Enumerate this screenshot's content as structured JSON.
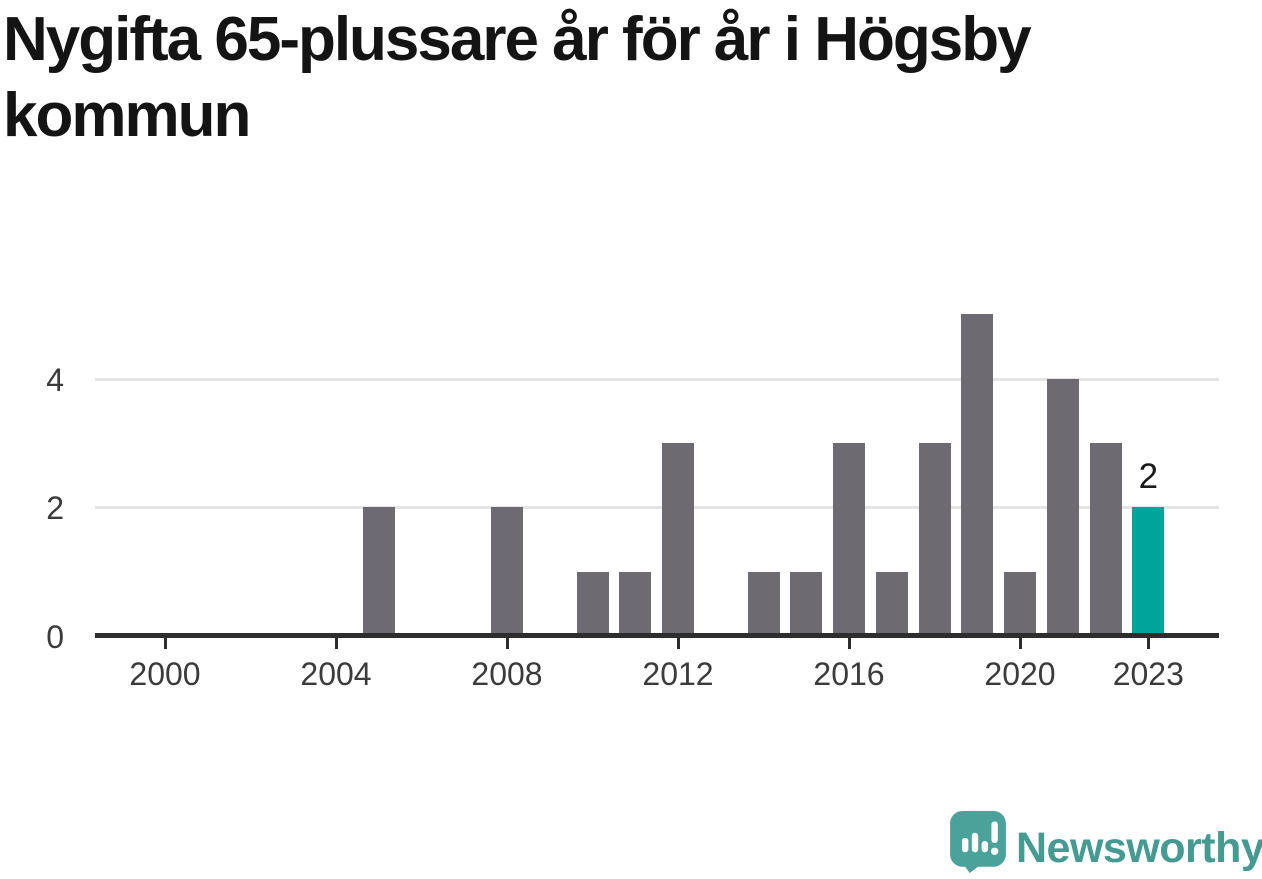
{
  "title": {
    "full": "Nygifta 65-plussare år för år i Högsby kommun",
    "lines": [
      "Nygifta 65-plussare år för år i Högsby",
      "kommun"
    ]
  },
  "chart_data": {
    "type": "bar",
    "title": "Nygifta 65-plussare år för år i Högsby kommun",
    "categories": [
      1999,
      2000,
      2001,
      2002,
      2003,
      2004,
      2005,
      2006,
      2007,
      2008,
      2009,
      2010,
      2011,
      2012,
      2013,
      2014,
      2015,
      2016,
      2017,
      2018,
      2019,
      2020,
      2021,
      2022,
      2023
    ],
    "values": [
      0,
      0,
      0,
      0,
      0,
      0,
      2,
      0,
      0,
      2,
      0,
      1,
      1,
      3,
      0,
      1,
      1,
      3,
      1,
      3,
      5,
      1,
      4,
      3,
      2
    ],
    "xlabel": "",
    "ylabel": "",
    "x_tick_labels": [
      "2000",
      "2004",
      "2008",
      "2012",
      "2016",
      "2020",
      "2023"
    ],
    "x_tick_years": [
      2000,
      2004,
      2008,
      2012,
      2016,
      2020,
      2023
    ],
    "y_tick_labels": [
      "0",
      "2",
      "4"
    ],
    "y_ticks": [
      0,
      2,
      4
    ],
    "ylim": [
      0,
      5.3
    ],
    "grid": "horizontal-only",
    "legend": "none",
    "highlight": {
      "category": 2023,
      "value": 2,
      "data_label": "2"
    },
    "colors": {
      "bar": "#6d6a72",
      "highlight_bar": "#00a49b",
      "axis_line": "#2d2d2d",
      "gridline": "#e4e3e5",
      "tick_label": "#3b3b3b",
      "data_label": "#1a1a1a",
      "title": "#141414"
    }
  },
  "logo": {
    "text": "Newsworthy",
    "mark_icon": "speech-bubble-bar-chart-exclamation-icon",
    "mark_color": "#4ba29a",
    "text_color": "#459a91"
  }
}
